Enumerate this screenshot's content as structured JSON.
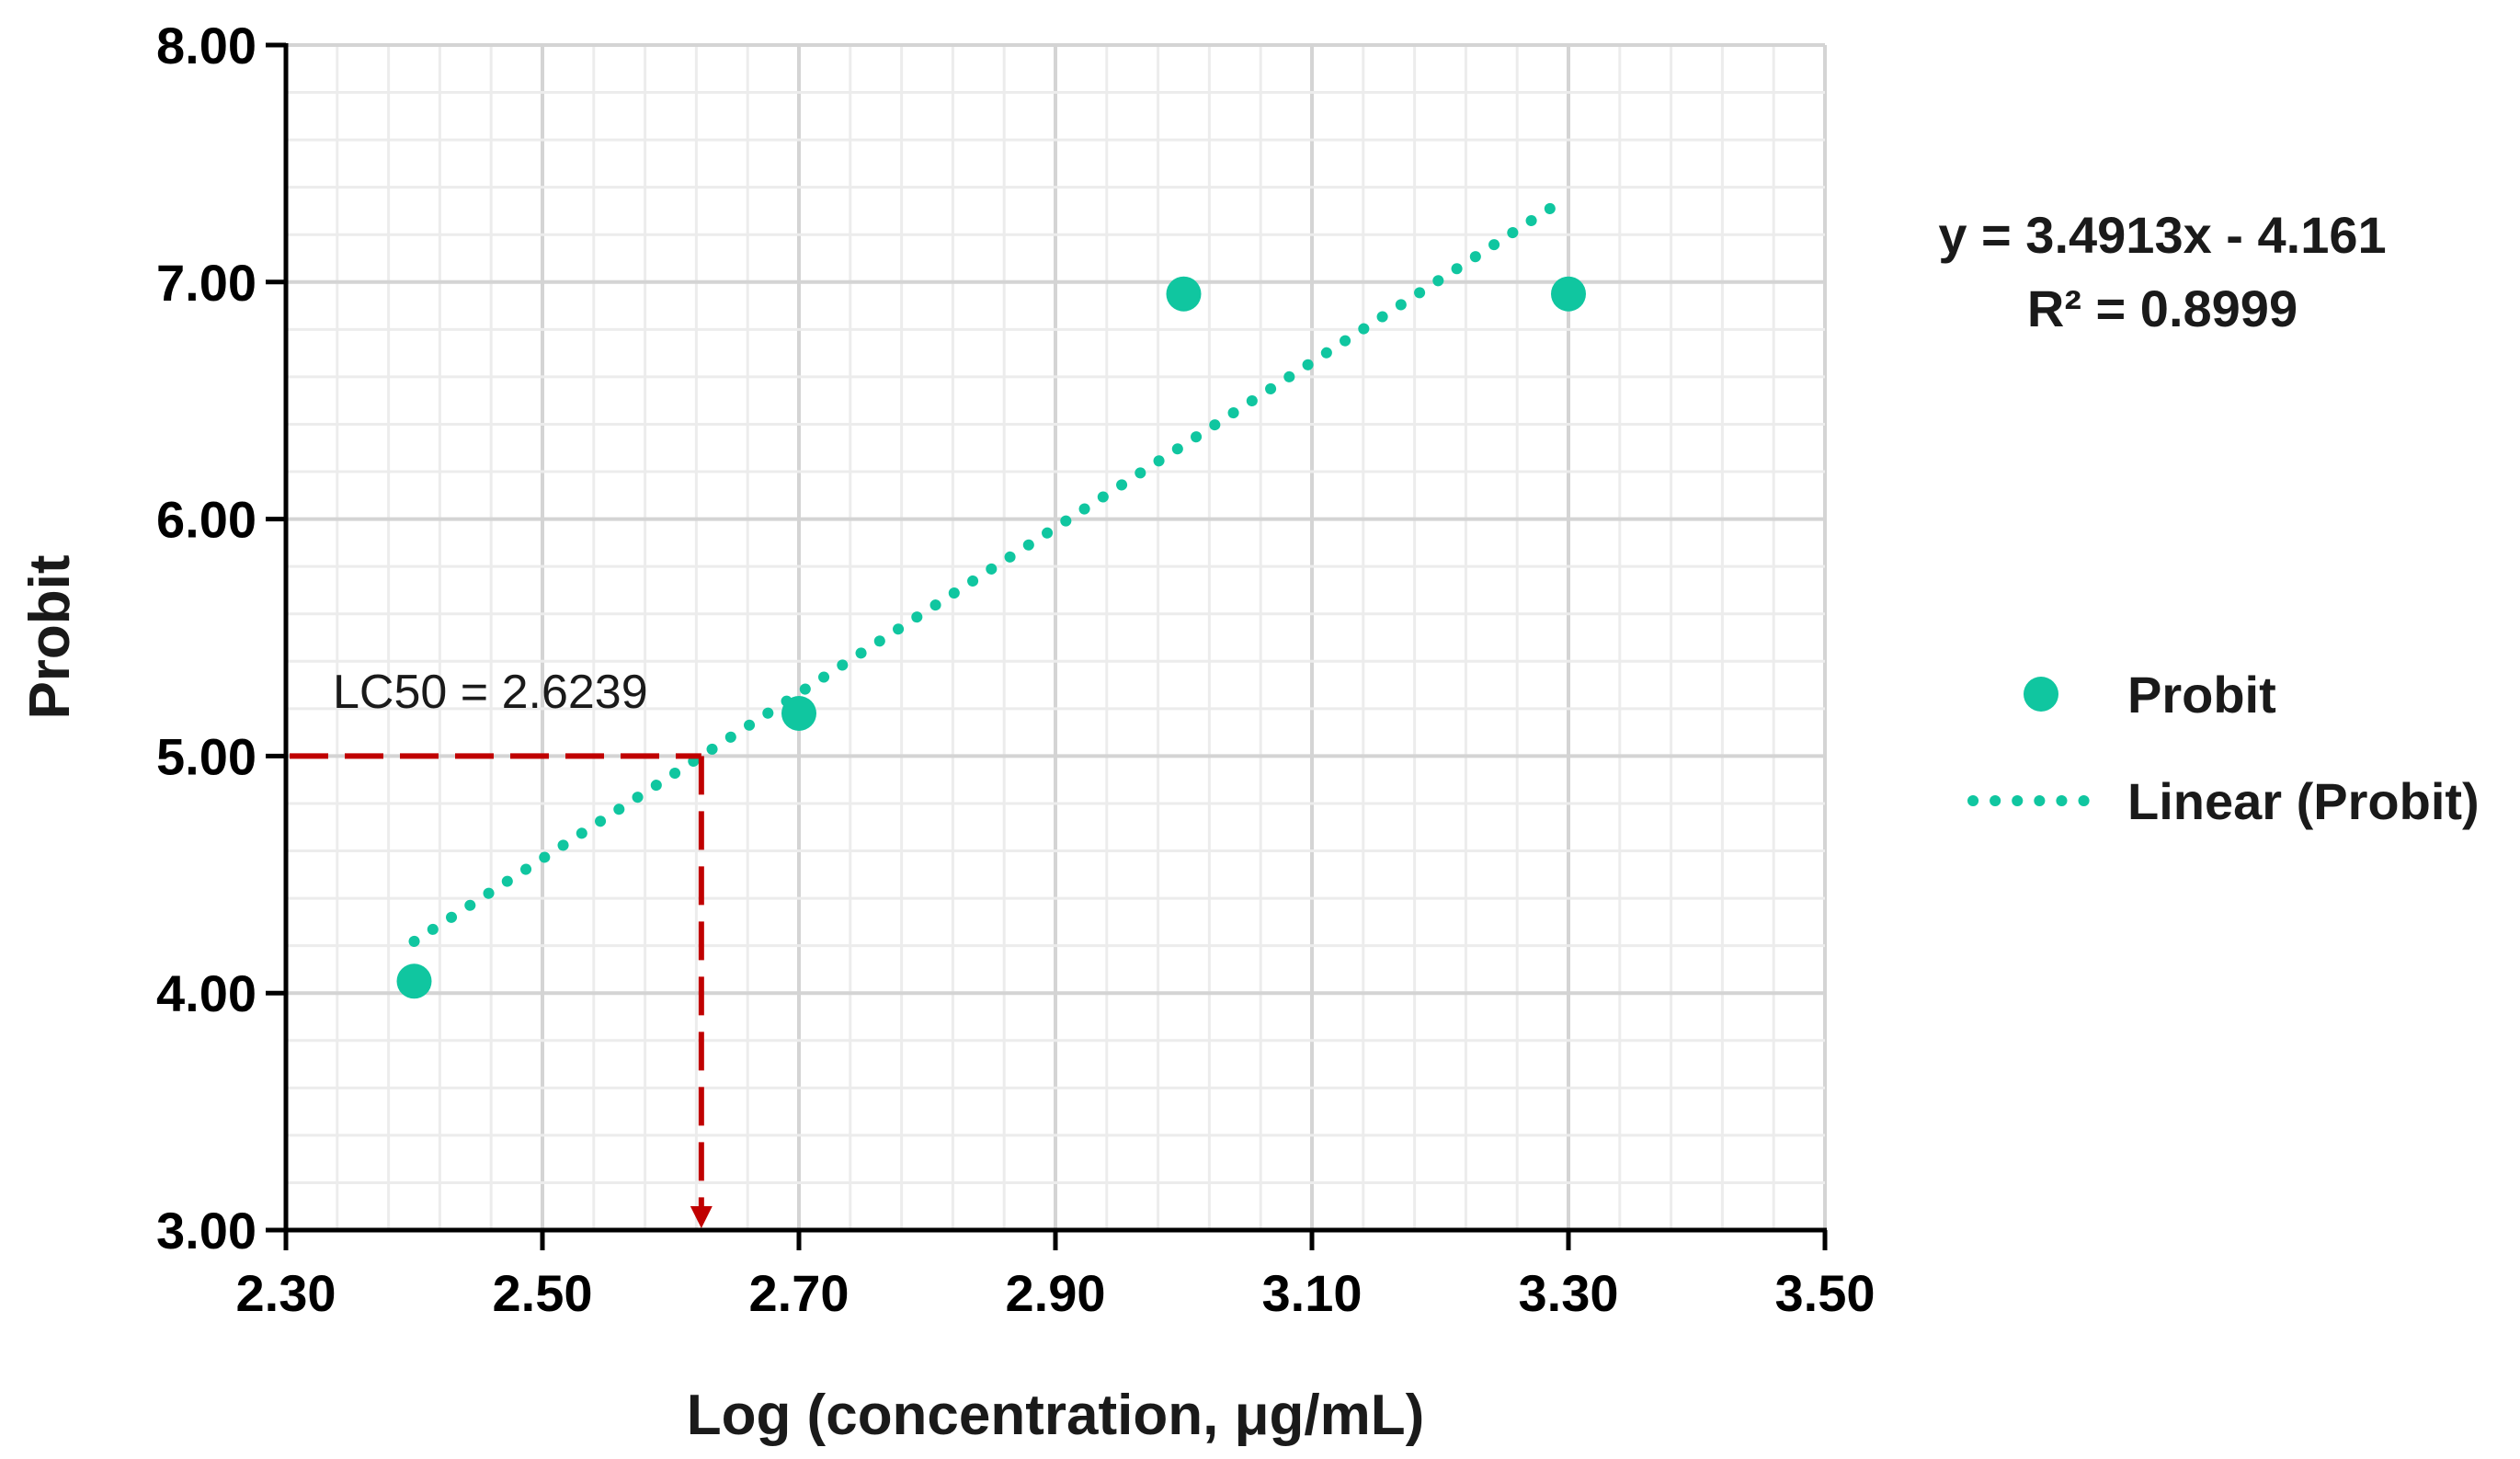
{
  "chart_data": {
    "type": "scatter",
    "title": "",
    "xlabel": "Log (concentration, μg/mL)",
    "ylabel": "Probit",
    "xlim": [
      2.3,
      3.5
    ],
    "ylim": [
      3.0,
      8.0
    ],
    "x_ticks": [
      2.3,
      2.5,
      2.7,
      2.9,
      3.1,
      3.3,
      3.5
    ],
    "x_tick_labels": [
      "2.30",
      "2.50",
      "2.70",
      "2.90",
      "3.10",
      "3.30",
      "3.50"
    ],
    "y_ticks": [
      3.0,
      4.0,
      5.0,
      6.0,
      7.0,
      8.0
    ],
    "y_tick_labels": [
      "3.00",
      "4.00",
      "5.00",
      "6.00",
      "7.00",
      "8.00"
    ],
    "grid": true,
    "series": [
      {
        "name": "Probit",
        "kind": "points",
        "color": "#10C6A0",
        "points": [
          {
            "x": 2.4,
            "y": 4.05
          },
          {
            "x": 2.7,
            "y": 5.18
          },
          {
            "x": 3.0,
            "y": 6.95
          },
          {
            "x": 3.3,
            "y": 6.95
          }
        ]
      },
      {
        "name": "Linear (Probit)",
        "kind": "trendline",
        "color": "#10C6A0",
        "slope": 3.4913,
        "intercept": -4.161,
        "x_range": [
          2.4,
          3.29
        ]
      }
    ],
    "equation_label": "y = 3.4913x - 4.161",
    "r2_label": "R² = 0.8999",
    "legend": {
      "position": "right",
      "entries": [
        "Probit",
        "Linear (Probit)"
      ]
    },
    "annotation": {
      "text": "LC50 = 2.6239",
      "x": 2.6239,
      "y": 5.0,
      "color": "#C00000"
    }
  }
}
